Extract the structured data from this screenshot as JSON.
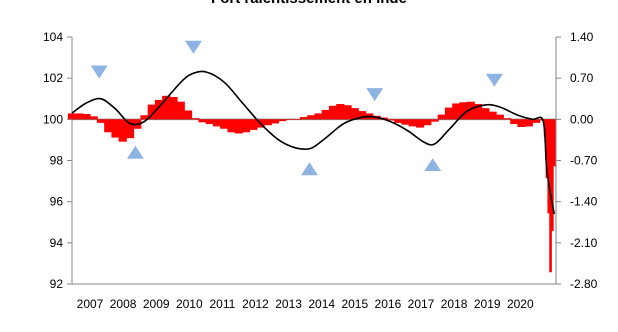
{
  "chart_data": {
    "type": "line",
    "title": "Fort ralentissement en Inde",
    "xlabel": "",
    "ylabel": "",
    "grid": false,
    "legend": "none",
    "x_tick_labels": [
      "2007",
      "2008",
      "2009",
      "2010",
      "2011",
      "2012",
      "2013",
      "2014",
      "2015",
      "2016",
      "2017",
      "2018",
      "2019",
      "2020"
    ],
    "y_left": {
      "ylim": [
        92,
        104
      ],
      "ticks": [
        "92",
        "94",
        "96",
        "98",
        "100",
        "102",
        "104"
      ]
    },
    "y_right": {
      "ylim": [
        -2.8,
        1.4
      ],
      "ticks": [
        "-2.80",
        "-2.10",
        "-1.40",
        "-0.70",
        "0.00",
        "0.70",
        "1.40"
      ]
    },
    "series": [
      {
        "role": "line-left-axis",
        "color": "#000000",
        "x": [
          2007.0,
          2007.4,
          2007.8,
          2008.2,
          2008.6,
          2009.0,
          2009.5,
          2010.0,
          2010.3,
          2010.7,
          2011.2,
          2011.7,
          2012.2,
          2012.7,
          2013.2,
          2013.6,
          2014.0,
          2014.5,
          2015.0,
          2015.4,
          2015.9,
          2016.3,
          2016.7,
          2017.0,
          2017.4,
          2017.9,
          2018.4,
          2018.8,
          2019.3,
          2019.7,
          2020.0,
          2020.1,
          2020.3
        ],
        "values": [
          100.3,
          100.8,
          101.0,
          100.5,
          99.8,
          99.9,
          100.8,
          101.8,
          102.2,
          102.3,
          101.8,
          100.8,
          99.8,
          99.0,
          98.6,
          98.6,
          99.1,
          99.8,
          100.1,
          100.1,
          99.8,
          99.4,
          98.9,
          98.8,
          99.5,
          100.4,
          100.7,
          100.6,
          100.2,
          100.0,
          99.9,
          97.5,
          95.4
        ]
      },
      {
        "role": "bars-right-axis",
        "color": "#ff0000",
        "x": [
          2007.0,
          2007.2,
          2007.4,
          2007.6,
          2007.8,
          2008.0,
          2008.2,
          2008.4,
          2008.6,
          2008.8,
          2009.0,
          2009.2,
          2009.4,
          2009.6,
          2009.8,
          2010.0,
          2010.2,
          2010.4,
          2010.6,
          2010.8,
          2011.0,
          2011.2,
          2011.4,
          2011.6,
          2011.8,
          2012.0,
          2012.2,
          2012.4,
          2012.6,
          2012.8,
          2013.0,
          2013.2,
          2013.4,
          2013.6,
          2013.8,
          2014.0,
          2014.2,
          2014.4,
          2014.6,
          2014.8,
          2015.0,
          2015.2,
          2015.4,
          2015.6,
          2015.8,
          2016.0,
          2016.2,
          2016.4,
          2016.6,
          2016.8,
          2017.0,
          2017.2,
          2017.4,
          2017.6,
          2017.8,
          2018.0,
          2018.2,
          2018.4,
          2018.6,
          2018.8,
          2019.0,
          2019.2,
          2019.4,
          2019.6,
          2019.8,
          2019.95,
          2020.0,
          2020.05,
          2020.1,
          2020.15,
          2020.2,
          2020.25,
          2020.3
        ],
        "values": [
          0.1,
          0.1,
          0.09,
          0.05,
          -0.06,
          -0.22,
          -0.31,
          -0.38,
          -0.32,
          -0.16,
          0.07,
          0.25,
          0.33,
          0.4,
          0.38,
          0.3,
          0.15,
          0.02,
          -0.05,
          -0.08,
          -0.12,
          -0.16,
          -0.22,
          -0.24,
          -0.22,
          -0.18,
          -0.14,
          -0.1,
          -0.07,
          -0.03,
          -0.01,
          0.0,
          0.04,
          0.07,
          0.1,
          0.16,
          0.23,
          0.26,
          0.24,
          0.19,
          0.14,
          0.1,
          0.06,
          0.03,
          -0.02,
          -0.06,
          -0.09,
          -0.12,
          -0.14,
          -0.1,
          -0.04,
          0.08,
          0.2,
          0.27,
          0.29,
          0.3,
          0.26,
          0.19,
          0.13,
          0.08,
          0.02,
          -0.08,
          -0.13,
          -0.12,
          -0.06,
          -0.02,
          0.0,
          -0.3,
          -1.0,
          -1.6,
          -2.6,
          -1.9,
          -0.8
        ]
      }
    ],
    "annotations": [
      {
        "shape": "triangle-down",
        "color": "#8eb4e3",
        "x": 2007.75,
        "y_left": 102.3
      },
      {
        "shape": "triangle-up",
        "color": "#8eb4e3",
        "x": 2008.75,
        "y_left": 98.4
      },
      {
        "shape": "triangle-down",
        "color": "#8eb4e3",
        "x": 2010.35,
        "y_left": 103.5
      },
      {
        "shape": "triangle-up",
        "color": "#8eb4e3",
        "x": 2013.55,
        "y_left": 97.6
      },
      {
        "shape": "triangle-down",
        "color": "#8eb4e3",
        "x": 2015.35,
        "y_left": 101.2
      },
      {
        "shape": "triangle-up",
        "color": "#8eb4e3",
        "x": 2016.95,
        "y_left": 97.8
      },
      {
        "shape": "triangle-down",
        "color": "#8eb4e3",
        "x": 2018.65,
        "y_left": 101.9
      }
    ]
  }
}
